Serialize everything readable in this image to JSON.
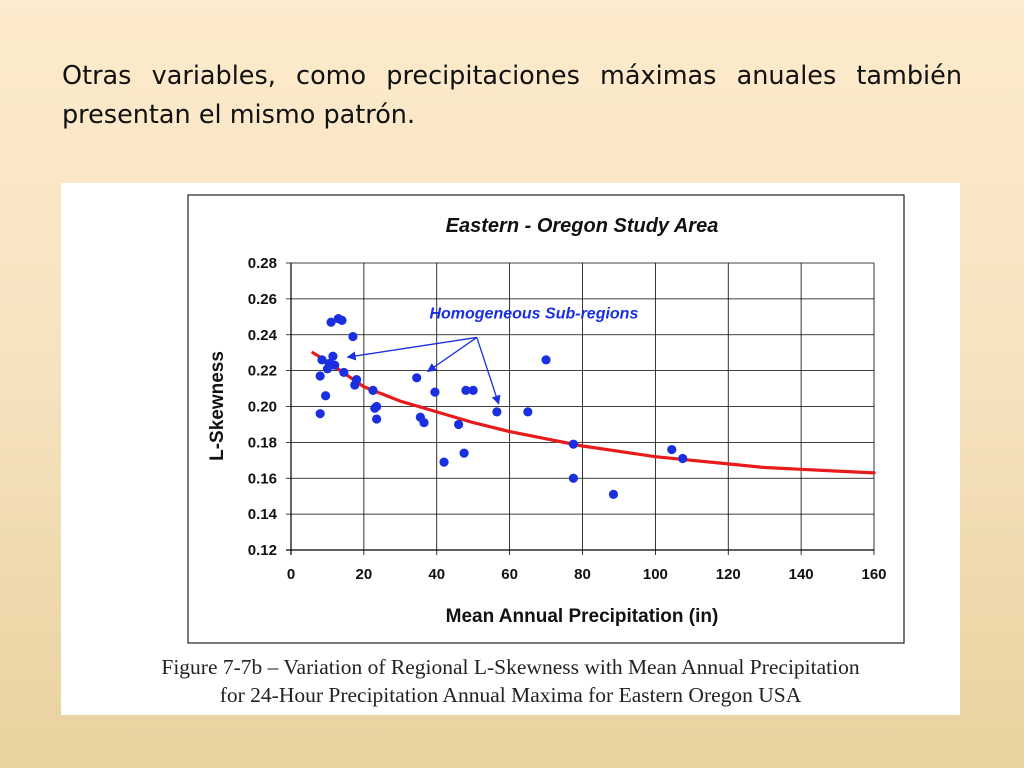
{
  "slide": {
    "text_line1": "Otras variables, como precipitaciones máximas anuales también",
    "text_line2": "presentan el mismo patrón."
  },
  "chart_data": {
    "type": "scatter",
    "title": "Eastern - Oregon Study Area",
    "xlabel": "Mean Annual Precipitation (in)",
    "ylabel": "L-Skewness",
    "xlim": [
      0,
      160
    ],
    "ylim": [
      0.12,
      0.28
    ],
    "xticks": [
      0,
      20,
      40,
      60,
      80,
      100,
      120,
      140,
      160
    ],
    "yticks": [
      0.12,
      0.14,
      0.16,
      0.18,
      0.2,
      0.22,
      0.24,
      0.26,
      0.28
    ],
    "xtick_labels": [
      "0",
      "20",
      "40",
      "60",
      "80",
      "100",
      "120",
      "140",
      "160"
    ],
    "ytick_labels": [
      "0.12",
      "0.14",
      "0.16",
      "0.18",
      "0.20",
      "0.22",
      "0.24",
      "0.26",
      "0.28"
    ],
    "grid": true,
    "point_color": "#1a2fe0",
    "curve_color": "#e81a1a",
    "annotation": {
      "text": "Homogeneous Sub-regions",
      "color": "#1a2fe0",
      "text_at": [
        38,
        0.249
      ],
      "hub": [
        51,
        0.2385
      ],
      "arrow_targets": [
        [
          15.5,
          0.2275
        ],
        [
          37.5,
          0.2195
        ],
        [
          57,
          0.2015
        ]
      ]
    },
    "points": [
      [
        8,
        0.196
      ],
      [
        8,
        0.217
      ],
      [
        8.5,
        0.226
      ],
      [
        9.5,
        0.206
      ],
      [
        10,
        0.221
      ],
      [
        10.5,
        0.224
      ],
      [
        11,
        0.247
      ],
      [
        11.5,
        0.228
      ],
      [
        12,
        0.223
      ],
      [
        13,
        0.249
      ],
      [
        14,
        0.248
      ],
      [
        14.5,
        0.219
      ],
      [
        17,
        0.239
      ],
      [
        17.5,
        0.212
      ],
      [
        18,
        0.215
      ],
      [
        22.5,
        0.209
      ],
      [
        23,
        0.199
      ],
      [
        23.5,
        0.2
      ],
      [
        23.5,
        0.193
      ],
      [
        34.5,
        0.216
      ],
      [
        35.5,
        0.194
      ],
      [
        36.5,
        0.191
      ],
      [
        39.5,
        0.208
      ],
      [
        42,
        0.169
      ],
      [
        46,
        0.19
      ],
      [
        47.5,
        0.174
      ],
      [
        48,
        0.209
      ],
      [
        50,
        0.209
      ],
      [
        56.5,
        0.197
      ],
      [
        65,
        0.197
      ],
      [
        70,
        0.226
      ],
      [
        77.5,
        0.179
      ],
      [
        77.5,
        0.16
      ],
      [
        88.5,
        0.151
      ],
      [
        104.5,
        0.176
      ],
      [
        107.5,
        0.171
      ]
    ],
    "trend_curve": [
      [
        6,
        0.23
      ],
      [
        10,
        0.225
      ],
      [
        20,
        0.211
      ],
      [
        30,
        0.203
      ],
      [
        40,
        0.197
      ],
      [
        50,
        0.191
      ],
      [
        60,
        0.186
      ],
      [
        70,
        0.182
      ],
      [
        80,
        0.178
      ],
      [
        90,
        0.175
      ],
      [
        100,
        0.172
      ],
      [
        110,
        0.17
      ],
      [
        120,
        0.168
      ],
      [
        130,
        0.166
      ],
      [
        140,
        0.165
      ],
      [
        150,
        0.164
      ],
      [
        160,
        0.163
      ]
    ]
  },
  "caption": {
    "line1": "Figure 7-7b – Variation of Regional L-Skewness with Mean Annual Precipitation",
    "line2": "for 24-Hour Precipitation Annual Maxima for Eastern Oregon USA"
  }
}
